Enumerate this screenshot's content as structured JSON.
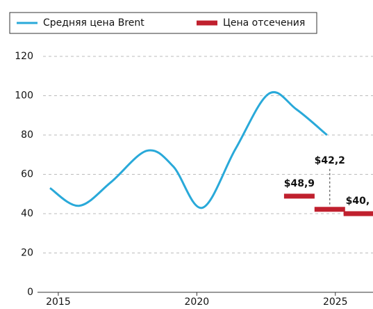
{
  "chart_data": {
    "type": "line",
    "series": [
      {
        "name": "Средняя цена Brent",
        "color": "#29a9d9",
        "x": [
          2014.7,
          2015.75,
          2016.9,
          2018.2,
          2019.15,
          2020.2,
          2021.4,
          2022.6,
          2023.6,
          2024.7
        ],
        "values": [
          53,
          44,
          56,
          72,
          64,
          43,
          73,
          101,
          93,
          80
        ]
      },
      {
        "name": "Цена отсечения",
        "color": "#c0202e",
        "type": "bar",
        "x": [
          2023.7,
          2024.8,
          2025.85
        ],
        "values": [
          48.9,
          42.2,
          40
        ],
        "value_labels": [
          "$48,9",
          "$42,2",
          "$40,"
        ]
      }
    ],
    "xlim": [
      2014.45,
      2026.36
    ],
    "xticks": [
      2015,
      2020,
      2025
    ],
    "ylim": [
      0,
      120
    ],
    "yticks": [
      0,
      20,
      40,
      60,
      80,
      100,
      120
    ],
    "grid": true
  }
}
